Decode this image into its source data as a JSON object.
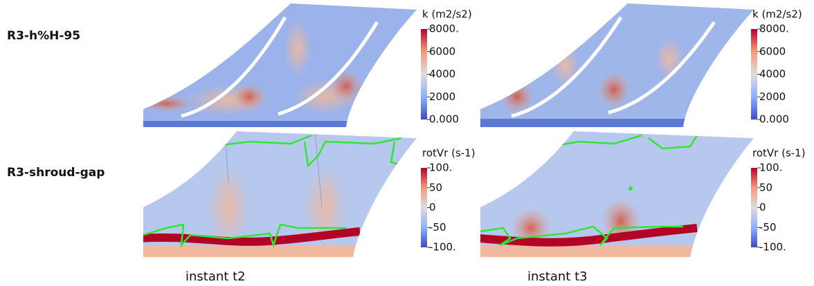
{
  "rows": [
    {
      "label": "R3-h%H-95"
    },
    {
      "label": "R3-shroud-gap"
    }
  ],
  "columns": [
    {
      "label": "instant  t2"
    },
    {
      "label": "instant  t3"
    }
  ],
  "colorbars": [
    {
      "title": "k (m2/s2)",
      "range": [
        0,
        8000
      ],
      "ticks": [
        {
          "value": 8000,
          "label": "8000."
        },
        6000,
        4000,
        2000,
        {
          "value": 0,
          "label": "0.000"
        }
      ]
    },
    {
      "title": "rotVr (s-1)",
      "range": [
        -100,
        100
      ],
      "ticks": [
        {
          "value": 100,
          "label": "100."
        },
        50,
        0,
        -50,
        {
          "value": -100,
          "label": "-100."
        }
      ]
    }
  ]
}
